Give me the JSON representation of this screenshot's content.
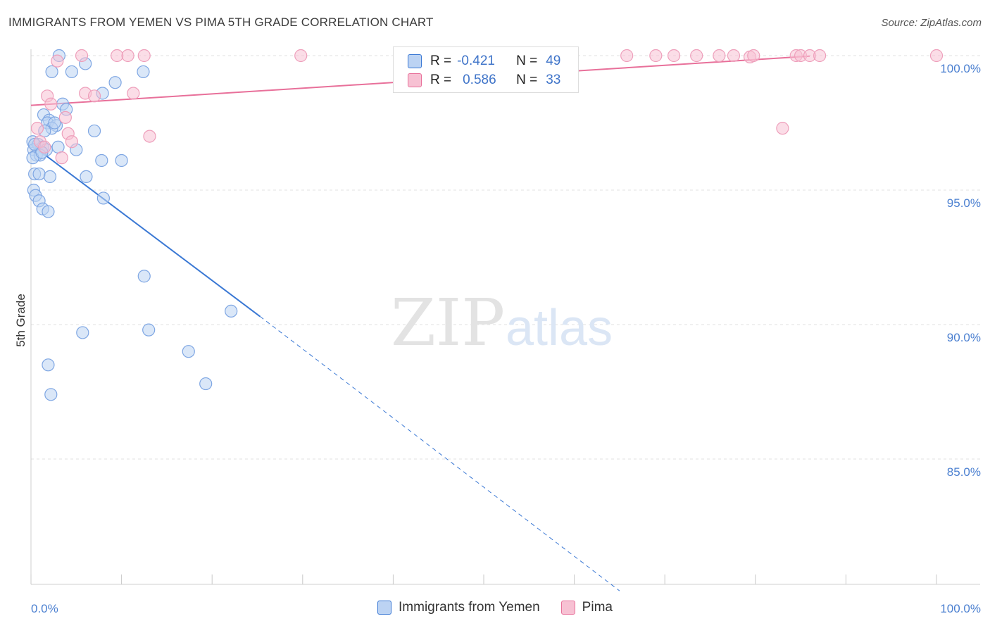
{
  "title": "IMMIGRANTS FROM YEMEN VS PIMA 5TH GRADE CORRELATION CHART",
  "source": "Source: ZipAtlas.com",
  "watermark": {
    "zip": "ZIP",
    "atlas": "atlas"
  },
  "colors": {
    "blue": "#3a78d4",
    "blue_fill": "#bcd3f3",
    "pink": "#e8709a",
    "pink_fill": "#f7c1d3",
    "axis_label": "#4a7fd0",
    "grid": "#e0e0e0"
  },
  "legend": {
    "rows": [
      {
        "r_label": "R =",
        "r_value": "-0.421",
        "n_label": "N =",
        "n_value": "49"
      },
      {
        "r_label": "R =",
        "r_value": "0.586",
        "n_label": "N =",
        "n_value": "33"
      }
    ]
  },
  "bottom_legend": {
    "series1": "Immigrants from Yemen",
    "series2": "Pima"
  },
  "chart_data": {
    "type": "scatter",
    "title": "IMMIGRANTS FROM YEMEN VS PIMA 5TH GRADE CORRELATION CHART",
    "xlabel": "",
    "ylabel": "5th Grade",
    "xlim": [
      0,
      100
    ],
    "ylim": [
      80.5,
      100.3
    ],
    "x_tick_labels": [
      "0.0%",
      "100.0%"
    ],
    "y_ticks": [
      100,
      95,
      90,
      85
    ],
    "y_tick_labels": [
      "100.0%",
      "95.0%",
      "90.0%",
      "85.0%"
    ],
    "grid": true,
    "series": [
      {
        "name": "Immigrants from Yemen",
        "color": "#3a78d4",
        "points": [
          [
            3.1,
            100.0
          ],
          [
            6.0,
            99.7
          ],
          [
            2.3,
            99.4
          ],
          [
            4.5,
            99.4
          ],
          [
            9.3,
            99.0
          ],
          [
            12.4,
            99.4
          ],
          [
            7.9,
            98.6
          ],
          [
            3.5,
            98.2
          ],
          [
            3.9,
            98.0
          ],
          [
            1.4,
            97.8
          ],
          [
            2.0,
            97.6
          ],
          [
            1.8,
            97.5
          ],
          [
            2.8,
            97.4
          ],
          [
            2.3,
            97.3
          ],
          [
            1.5,
            97.2
          ],
          [
            7.0,
            97.2
          ],
          [
            0.2,
            96.8
          ],
          [
            0.8,
            96.7
          ],
          [
            1.3,
            96.6
          ],
          [
            0.3,
            96.5
          ],
          [
            1.7,
            96.5
          ],
          [
            3.0,
            96.6
          ],
          [
            5.0,
            96.5
          ],
          [
            0.6,
            96.3
          ],
          [
            1.0,
            96.3
          ],
          [
            0.2,
            96.2
          ],
          [
            7.8,
            96.1
          ],
          [
            10.0,
            96.1
          ],
          [
            0.4,
            95.6
          ],
          [
            0.9,
            95.6
          ],
          [
            2.1,
            95.5
          ],
          [
            6.1,
            95.5
          ],
          [
            0.3,
            95.0
          ],
          [
            0.5,
            94.8
          ],
          [
            0.9,
            94.6
          ],
          [
            8.0,
            94.7
          ],
          [
            1.3,
            94.3
          ],
          [
            1.9,
            94.2
          ],
          [
            12.5,
            91.8
          ],
          [
            22.1,
            90.5
          ],
          [
            5.7,
            89.7
          ],
          [
            13.0,
            89.8
          ],
          [
            17.4,
            89.0
          ],
          [
            1.9,
            88.5
          ],
          [
            19.3,
            87.8
          ],
          [
            2.2,
            87.4
          ],
          [
            0.4,
            96.7
          ],
          [
            1.2,
            96.4
          ],
          [
            2.6,
            97.5
          ]
        ],
        "trend": {
          "x1": 0.0,
          "y1": 96.7,
          "x2": 25.3,
          "y2": 90.3,
          "dash_to_x": 65.0,
          "dash_to_y": 80.1
        }
      },
      {
        "name": "Pima",
        "color": "#e8709a",
        "points": [
          [
            5.6,
            100.0
          ],
          [
            9.5,
            100.0
          ],
          [
            10.7,
            100.0
          ],
          [
            12.5,
            100.0
          ],
          [
            29.8,
            100.0
          ],
          [
            65.8,
            100.0
          ],
          [
            69.0,
            100.0
          ],
          [
            71.0,
            100.0
          ],
          [
            73.5,
            100.0
          ],
          [
            76.0,
            100.0
          ],
          [
            77.6,
            100.0
          ],
          [
            79.4,
            99.95
          ],
          [
            79.8,
            100.0
          ],
          [
            84.5,
            100.0
          ],
          [
            85.0,
            100.0
          ],
          [
            86.0,
            100.0
          ],
          [
            87.1,
            100.0
          ],
          [
            100.0,
            100.0
          ],
          [
            2.9,
            99.8
          ],
          [
            6.0,
            98.6
          ],
          [
            7.0,
            98.5
          ],
          [
            1.8,
            98.5
          ],
          [
            11.3,
            98.6
          ],
          [
            2.2,
            98.2
          ],
          [
            3.8,
            97.7
          ],
          [
            0.7,
            97.3
          ],
          [
            4.1,
            97.1
          ],
          [
            13.1,
            97.0
          ],
          [
            1.0,
            96.8
          ],
          [
            4.5,
            96.8
          ],
          [
            1.5,
            96.6
          ],
          [
            3.4,
            96.2
          ],
          [
            83.0,
            97.3
          ]
        ],
        "trend": {
          "x1": 0.0,
          "y1": 98.15,
          "x2": 86.0,
          "y2": 99.98
        }
      }
    ]
  }
}
